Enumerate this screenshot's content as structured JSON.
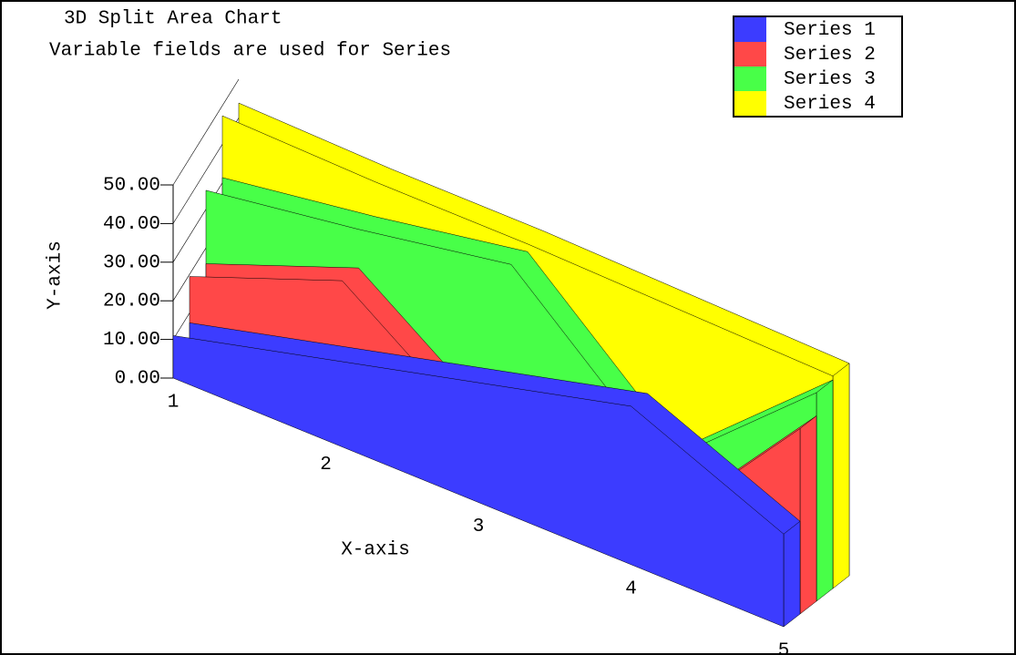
{
  "chart_data": {
    "type": "area3d",
    "title": "3D Split Area Chart",
    "subtitle": "Variable fields are used for Series",
    "x_label": "X-axis",
    "y_label": "Y-axis",
    "categories": [
      "1",
      "2",
      "3",
      "4",
      "5"
    ],
    "series": [
      {
        "name": "Series 1",
        "color": "#3c3cff",
        "values": [
          11,
          21,
          31,
          41,
          24
        ]
      },
      {
        "name": "Series 2",
        "color": "#ff4848",
        "values": [
          23,
          38,
          10,
          5,
          48
        ]
      },
      {
        "name": "Series 3",
        "color": "#48ff48",
        "values": [
          42,
          48,
          55,
          20,
          54
        ]
      },
      {
        "name": "Series 4",
        "color": "#ffff00",
        "values": [
          58,
          57,
          57,
          56,
          55
        ]
      }
    ],
    "ylim": [
      0,
      50
    ],
    "yticks": [
      {
        "value": 0,
        "label": "0.00"
      },
      {
        "value": 10,
        "label": "10.00"
      },
      {
        "value": 20,
        "label": "20.00"
      },
      {
        "value": 30,
        "label": "30.00"
      },
      {
        "value": 40,
        "label": "40.00"
      },
      {
        "value": 50,
        "label": "50.00"
      }
    ],
    "legend": "top-right"
  }
}
